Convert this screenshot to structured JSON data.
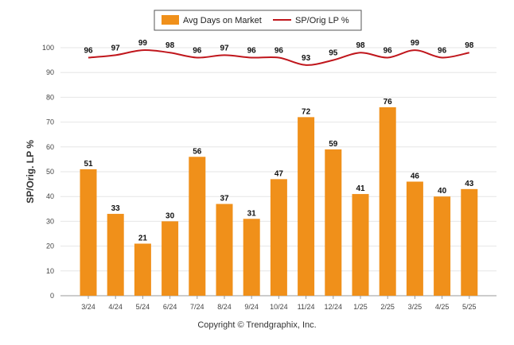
{
  "chart_data": {
    "type": "bar",
    "categories": [
      "3/24",
      "4/24",
      "5/24",
      "6/24",
      "7/24",
      "8/24",
      "9/24",
      "10/24",
      "11/24",
      "12/24",
      "1/25",
      "2/25",
      "3/25",
      "4/25",
      "5/25"
    ],
    "series": [
      {
        "name": "Avg Days on Market",
        "type": "bar",
        "color": "#f0901a",
        "values": [
          51,
          33,
          21,
          30,
          56,
          37,
          31,
          47,
          72,
          59,
          41,
          76,
          46,
          40,
          43
        ]
      },
      {
        "name": "SP/Orig LP %",
        "type": "line",
        "color": "#c0161c",
        "values": [
          96,
          97,
          99,
          98,
          96,
          97,
          96,
          96,
          93,
          95,
          98,
          96,
          99,
          96,
          98
        ]
      }
    ],
    "ylabel": "SP/Orig. LP %",
    "ylim": [
      0,
      100
    ],
    "yticks": [
      0,
      10,
      20,
      30,
      40,
      50,
      60,
      70,
      80,
      90,
      100
    ],
    "grid": true,
    "legend_position": "top-center"
  },
  "copyright": "Copyright © Trendgraphix, Inc."
}
